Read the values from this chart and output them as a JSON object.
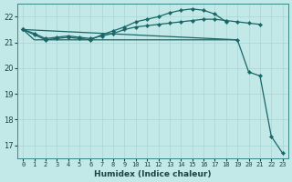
{
  "xlabel": "Humidex (Indice chaleur)",
  "background_color": "#c2e8e8",
  "grid_color": "#aad4d4",
  "line_color": "#1a6666",
  "xlim": [
    -0.5,
    23.5
  ],
  "ylim": [
    16.5,
    22.5
  ],
  "yticks": [
    17,
    18,
    19,
    20,
    21,
    22
  ],
  "xticks": [
    0,
    1,
    2,
    3,
    4,
    5,
    6,
    7,
    8,
    9,
    10,
    11,
    12,
    13,
    14,
    15,
    16,
    17,
    18,
    19,
    20,
    21,
    22,
    23
  ],
  "series1_x": [
    0,
    1,
    2,
    3,
    4,
    5,
    6,
    7,
    8,
    9,
    10,
    11,
    12,
    13,
    14,
    15,
    16,
    17,
    18
  ],
  "series1_y": [
    21.5,
    21.3,
    21.1,
    21.15,
    21.2,
    21.15,
    21.1,
    21.3,
    21.45,
    21.6,
    21.8,
    21.9,
    22.0,
    22.15,
    22.25,
    22.3,
    22.25,
    22.1,
    21.8
  ],
  "series2_x": [
    0,
    1,
    2,
    3,
    4,
    5,
    6,
    7,
    8,
    9,
    10,
    11,
    12,
    13,
    14,
    15,
    16,
    17,
    18,
    19,
    20,
    21
  ],
  "series2_y": [
    21.5,
    21.35,
    21.15,
    21.2,
    21.25,
    21.2,
    21.15,
    21.25,
    21.35,
    21.5,
    21.6,
    21.65,
    21.7,
    21.75,
    21.8,
    21.85,
    21.9,
    21.9,
    21.85,
    21.8,
    21.75,
    21.7
  ],
  "series3_x": [
    0,
    1,
    2,
    3,
    4,
    5,
    6,
    7,
    8,
    9,
    10,
    11,
    12,
    13,
    14,
    15,
    16,
    17,
    18,
    19
  ],
  "series3_y": [
    21.5,
    21.1,
    21.1,
    21.1,
    21.1,
    21.1,
    21.1,
    21.1,
    21.1,
    21.1,
    21.1,
    21.1,
    21.1,
    21.1,
    21.1,
    21.1,
    21.1,
    21.1,
    21.1,
    21.1
  ],
  "series4_x": [
    0,
    19,
    20,
    21,
    22,
    23
  ],
  "series4_y": [
    21.5,
    21.1,
    19.85,
    19.7,
    17.35,
    16.7
  ]
}
